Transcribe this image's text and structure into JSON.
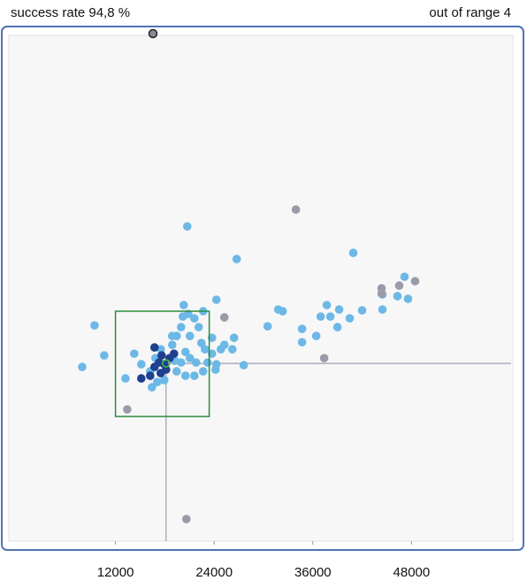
{
  "header": {
    "left": "success rate 94,8 %",
    "right": "out of range 4"
  },
  "chart_data": {
    "type": "scatter",
    "xlim": [
      0,
      60000
    ],
    "ylim": [
      0,
      60000
    ],
    "xticks": [
      12000,
      24000,
      36000,
      48000
    ],
    "target": {
      "x": 18150,
      "y": 21130
    },
    "box": {
      "x": [
        12000,
        23400
      ],
      "y": [
        14760,
        27400
      ]
    },
    "series": [
      {
        "color": "#6cb8e6",
        "x": [
          7950,
          9450,
          10630,
          20730,
          26740,
          24270,
          40920,
          31790,
          32330,
          30500,
          34690,
          36410,
          36950,
          37700,
          38130,
          39200,
          38990,
          40490,
          41990,
          44460,
          44460,
          46290,
          47150,
          47580,
          27600,
          26210,
          25240,
          26420,
          22660,
          21590,
          20190,
          14280,
          13210,
          15140,
          16220,
          16860,
          17510,
          18900,
          19440,
          19980,
          20510,
          21050,
          21800,
          22450,
          22880,
          23740,
          24270,
          19440,
          20510,
          21590,
          22660,
          19220,
          17940,
          17080,
          16430,
          18900,
          21050,
          22120,
          23740,
          24810,
          19980,
          23200,
          24170,
          34690,
          20300,
          20840
        ],
        "values": [
          20710,
          25700,
          22090,
          37590,
          33670,
          28780,
          34410,
          27610,
          27400,
          25590,
          25280,
          24430,
          26760,
          28140,
          26760,
          27610,
          25490,
          26550,
          27510,
          27610,
          29420,
          29210,
          31540,
          28890,
          20920,
          22830,
          23360,
          24210,
          27400,
          26550,
          26760,
          22300,
          19330,
          21030,
          20180,
          21770,
          22830,
          23360,
          24430,
          25490,
          22510,
          21770,
          21240,
          23580,
          22830,
          22300,
          21030,
          20180,
          19650,
          19650,
          20180,
          21450,
          19120,
          18900,
          18270,
          24430,
          24430,
          25490,
          24210,
          22830,
          21240,
          21240,
          20390,
          23680,
          28140,
          27080
        ]
      },
      {
        "color": "#1f3f8f",
        "x": [
          15140,
          16750,
          17290,
          17610,
          18150,
          18580,
          17940,
          16220,
          16750,
          19120,
          17510
        ],
        "values": [
          19330,
          23050,
          21240,
          22090,
          20390,
          21770,
          21030,
          19650,
          20710,
          22300,
          19970
        ]
      },
      {
        "color": "#9a9aa8",
        "x": [
          33940,
          25240,
          37380,
          13430,
          20620,
          44360,
          44360,
          46500,
          48440
        ],
        "values": [
          39610,
          26660,
          21770,
          15610,
          2440,
          30160,
          29520,
          30480,
          31010
        ]
      }
    ]
  }
}
